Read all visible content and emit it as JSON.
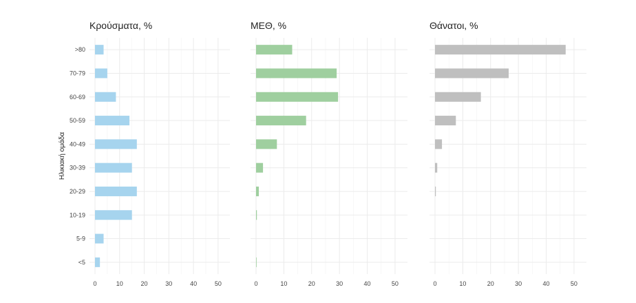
{
  "chart_data": {
    "type": "bar",
    "orientation": "horizontal",
    "ylabel": "Ηλικιακή ομάδα",
    "categories": [
      ">80",
      "70-79",
      "60-69",
      "50-59",
      "40-49",
      "30-39",
      "20-29",
      "10-19",
      "5-9",
      "<5"
    ],
    "xlim": [
      0,
      52
    ],
    "xticks": [
      0,
      10,
      20,
      30,
      40,
      50
    ],
    "grid": true,
    "panels": [
      {
        "title": "Κρούσματα, %",
        "color": "#a6d4ee",
        "values": [
          3.5,
          5.0,
          8.5,
          14.0,
          17.0,
          15.0,
          17.0,
          15.0,
          3.5,
          2.0
        ]
      },
      {
        "title": "ΜΕΘ, %",
        "color": "#9fcf9f",
        "values": [
          13.0,
          29.0,
          29.5,
          18.0,
          7.5,
          2.5,
          1.0,
          0.3,
          0.0,
          0.2
        ]
      },
      {
        "title": "Θάνατοι, %",
        "color": "#bfbfbf",
        "values": [
          47.0,
          26.5,
          16.5,
          7.5,
          2.5,
          0.8,
          0.3,
          0.0,
          0.0,
          0.0
        ]
      }
    ]
  }
}
